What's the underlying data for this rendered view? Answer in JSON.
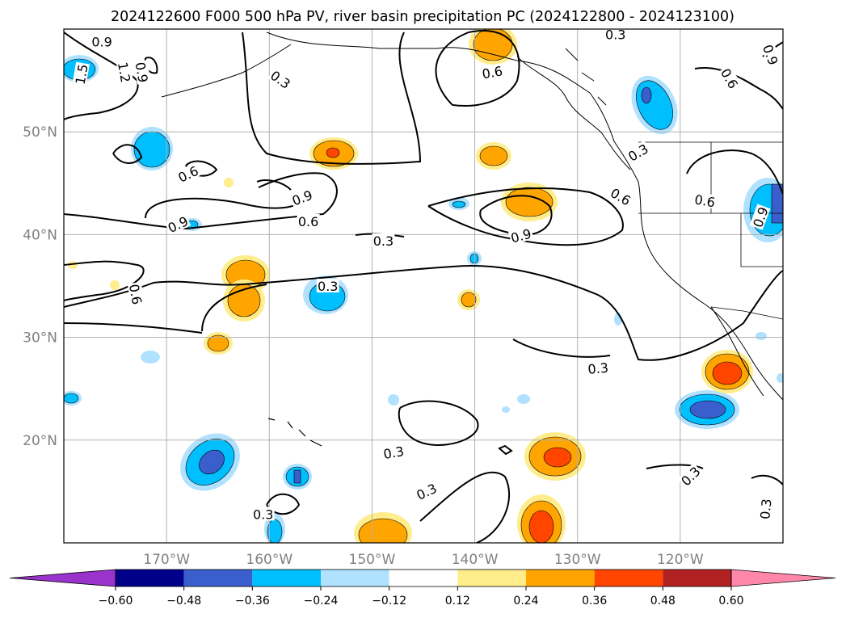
{
  "title": "2024122600 F000 500 hPa PV, river basin precipitation PC (2024122800 - 2024123100)",
  "map": {
    "lon_range": [
      -180,
      -110
    ],
    "lat_range": [
      10,
      60
    ],
    "grid": true,
    "lon_ticks": [
      {
        "value": -170,
        "label": "170°W"
      },
      {
        "value": -160,
        "label": "160°W"
      },
      {
        "value": -150,
        "label": "150°W"
      },
      {
        "value": -140,
        "label": "140°W"
      },
      {
        "value": -130,
        "label": "130°W"
      },
      {
        "value": -120,
        "label": "120°W"
      }
    ],
    "lat_ticks": [
      {
        "value": 20,
        "label": "20°N"
      },
      {
        "value": 30,
        "label": "30°N"
      },
      {
        "value": 40,
        "label": "40°N"
      },
      {
        "value": 50,
        "label": "50°N"
      }
    ],
    "contour_labels": [
      {
        "text": "0.9",
        "lon": -176.3,
        "lat": 58.8,
        "rot": 0
      },
      {
        "text": "1.5",
        "lon": -178.3,
        "lat": 55.6,
        "rot": -80
      },
      {
        "text": "1.2",
        "lon": -174.1,
        "lat": 55.8,
        "rot": 80
      },
      {
        "text": "0.9",
        "lon": -172.4,
        "lat": 55.8,
        "rot": 80
      },
      {
        "text": "0.3",
        "lon": -158.9,
        "lat": 55.1,
        "rot": 35
      },
      {
        "text": "0.6",
        "lon": -138.3,
        "lat": 55.8,
        "rot": -10
      },
      {
        "text": "0.3",
        "lon": -126.3,
        "lat": 59.5,
        "rot": 0
      },
      {
        "text": "0.6",
        "lon": -115.2,
        "lat": 55.2,
        "rot": 60
      },
      {
        "text": "0.9",
        "lon": -111.2,
        "lat": 57.5,
        "rot": 70
      },
      {
        "text": "0.3",
        "lon": -124.1,
        "lat": 48.0,
        "rot": -30
      },
      {
        "text": "0.6",
        "lon": -117.6,
        "lat": 43.3,
        "rot": 10
      },
      {
        "text": "0.6",
        "lon": -125.8,
        "lat": 43.7,
        "rot": 30
      },
      {
        "text": "0.9",
        "lon": -112.2,
        "lat": 41.7,
        "rot": -70
      },
      {
        "text": "0.6",
        "lon": -167.9,
        "lat": 45.9,
        "rot": -25
      },
      {
        "text": "0.9",
        "lon": -156.8,
        "lat": 43.6,
        "rot": -20
      },
      {
        "text": "0.9",
        "lon": -168.9,
        "lat": 41.0,
        "rot": -25
      },
      {
        "text": "0.6",
        "lon": -156.2,
        "lat": 41.3,
        "rot": 0
      },
      {
        "text": "0.9",
        "lon": -135.5,
        "lat": 39.9,
        "rot": -15
      },
      {
        "text": "0.3",
        "lon": -148.9,
        "lat": 39.4,
        "rot": 0
      },
      {
        "text": "0.6",
        "lon": -173.0,
        "lat": 34.2,
        "rot": 80
      },
      {
        "text": "0.3",
        "lon": -154.3,
        "lat": 35.0,
        "rot": 0
      },
      {
        "text": "0.3",
        "lon": -128.0,
        "lat": 27.0,
        "rot": -5
      },
      {
        "text": "0.3",
        "lon": -147.9,
        "lat": 18.8,
        "rot": -10
      },
      {
        "text": "0.3",
        "lon": -144.7,
        "lat": 15.0,
        "rot": -25
      },
      {
        "text": "0.3",
        "lon": -119.0,
        "lat": 16.5,
        "rot": -45
      },
      {
        "text": "0.3",
        "lon": -111.7,
        "lat": 13.3,
        "rot": -85
      },
      {
        "text": "0.3",
        "lon": -160.6,
        "lat": 12.8,
        "rot": 0
      }
    ]
  },
  "colorbar": {
    "colors": [
      "#9933cc",
      "#00008b",
      "#3a5fcd",
      "#00bfff",
      "#b0e2ff",
      "#ffffff",
      "#ffec8b",
      "#ffa500",
      "#ff4500",
      "#b22222",
      "#ff88aa"
    ],
    "tick_labels": [
      "−0.60",
      "−0.48",
      "−0.36",
      "−0.24",
      "−0.12",
      "0.12",
      "0.24",
      "0.36",
      "0.48",
      "0.60"
    ]
  },
  "colors": {
    "land_lines": "#000000",
    "grid": "#b0b0b0",
    "tick_text": "#808080"
  }
}
